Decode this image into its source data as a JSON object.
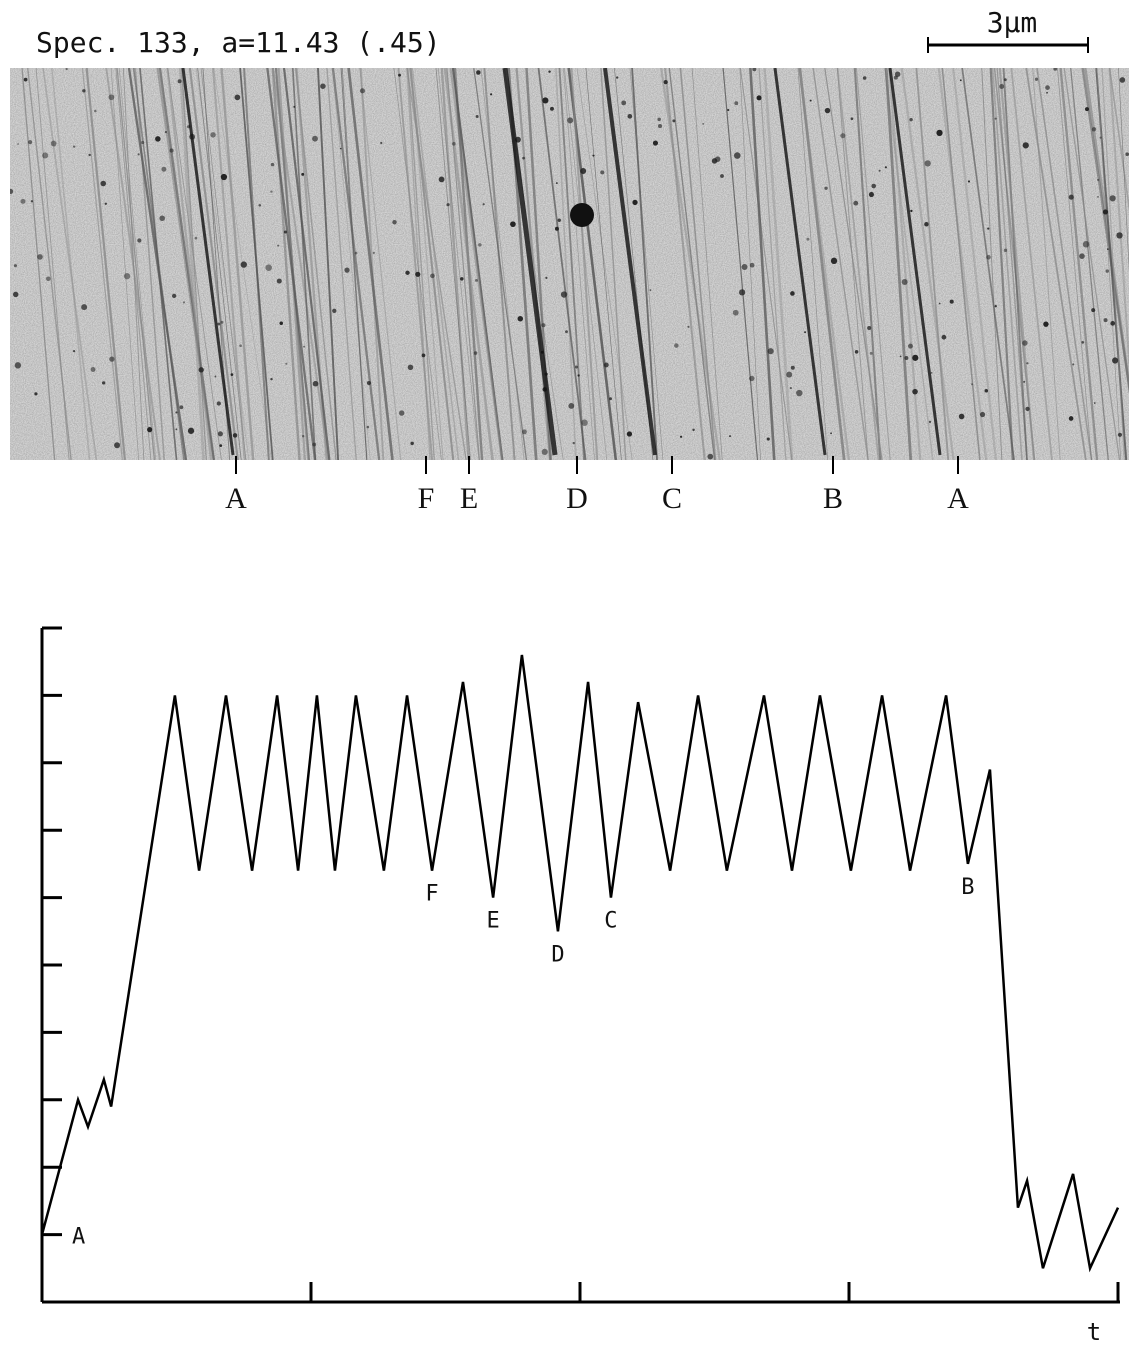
{
  "header": {
    "title": "Spec. 133, a=11.43 (.45)",
    "scale_bar": "3μm"
  },
  "micrograph": {
    "markers": [
      "A",
      "F",
      "E",
      "D",
      "C",
      "B",
      "A"
    ]
  },
  "chart_data": {
    "type": "line",
    "x_label": "t",
    "x": [
      0,
      0.134,
      0.171,
      0.23,
      0.257,
      0.494,
      0.584,
      0.684,
      0.781,
      0.874,
      0.952,
      1.022,
      1.089,
      1.167,
      1.271,
      1.357,
      1.45,
      1.565,
      1.677,
      1.784,
      1.918,
      2.03,
      2.115,
      2.216,
      2.335,
      2.439,
      2.546,
      2.684,
      2.788,
      2.892,
      3.007,
      3.123,
      3.227,
      3.361,
      3.442,
      3.524,
      3.628,
      3.662,
      3.721,
      3.833,
      3.896,
      4.0
    ],
    "values": [
      1.0,
      3.0,
      2.6,
      3.3,
      2.9,
      9.0,
      6.4,
      9.0,
      6.4,
      9.0,
      6.4,
      9.0,
      6.4,
      9.0,
      6.4,
      9.0,
      6.4,
      9.2,
      6.0,
      9.6,
      5.5,
      9.2,
      6.0,
      8.9,
      6.4,
      9.0,
      6.4,
      9.0,
      6.4,
      9.0,
      6.4,
      9.0,
      6.4,
      9.0,
      6.5,
      7.9,
      1.4,
      1.8,
      0.5,
      1.9,
      0.5,
      1.4
    ],
    "point_labels": [
      "A",
      null,
      null,
      null,
      null,
      null,
      null,
      null,
      null,
      null,
      null,
      null,
      null,
      null,
      null,
      null,
      "F",
      null,
      "E",
      null,
      "D",
      null,
      "C",
      null,
      null,
      null,
      null,
      null,
      null,
      null,
      null,
      null,
      null,
      null,
      "B",
      null,
      null,
      null,
      null,
      null,
      null,
      null
    ],
    "color": "#000000",
    "xlim": [
      0,
      4
    ],
    "xticks": [
      1,
      2,
      3,
      4
    ],
    "ylim": [
      0,
      10
    ],
    "yticks": [
      1,
      2,
      3,
      4,
      5,
      6,
      7,
      8,
      9,
      10
    ]
  }
}
